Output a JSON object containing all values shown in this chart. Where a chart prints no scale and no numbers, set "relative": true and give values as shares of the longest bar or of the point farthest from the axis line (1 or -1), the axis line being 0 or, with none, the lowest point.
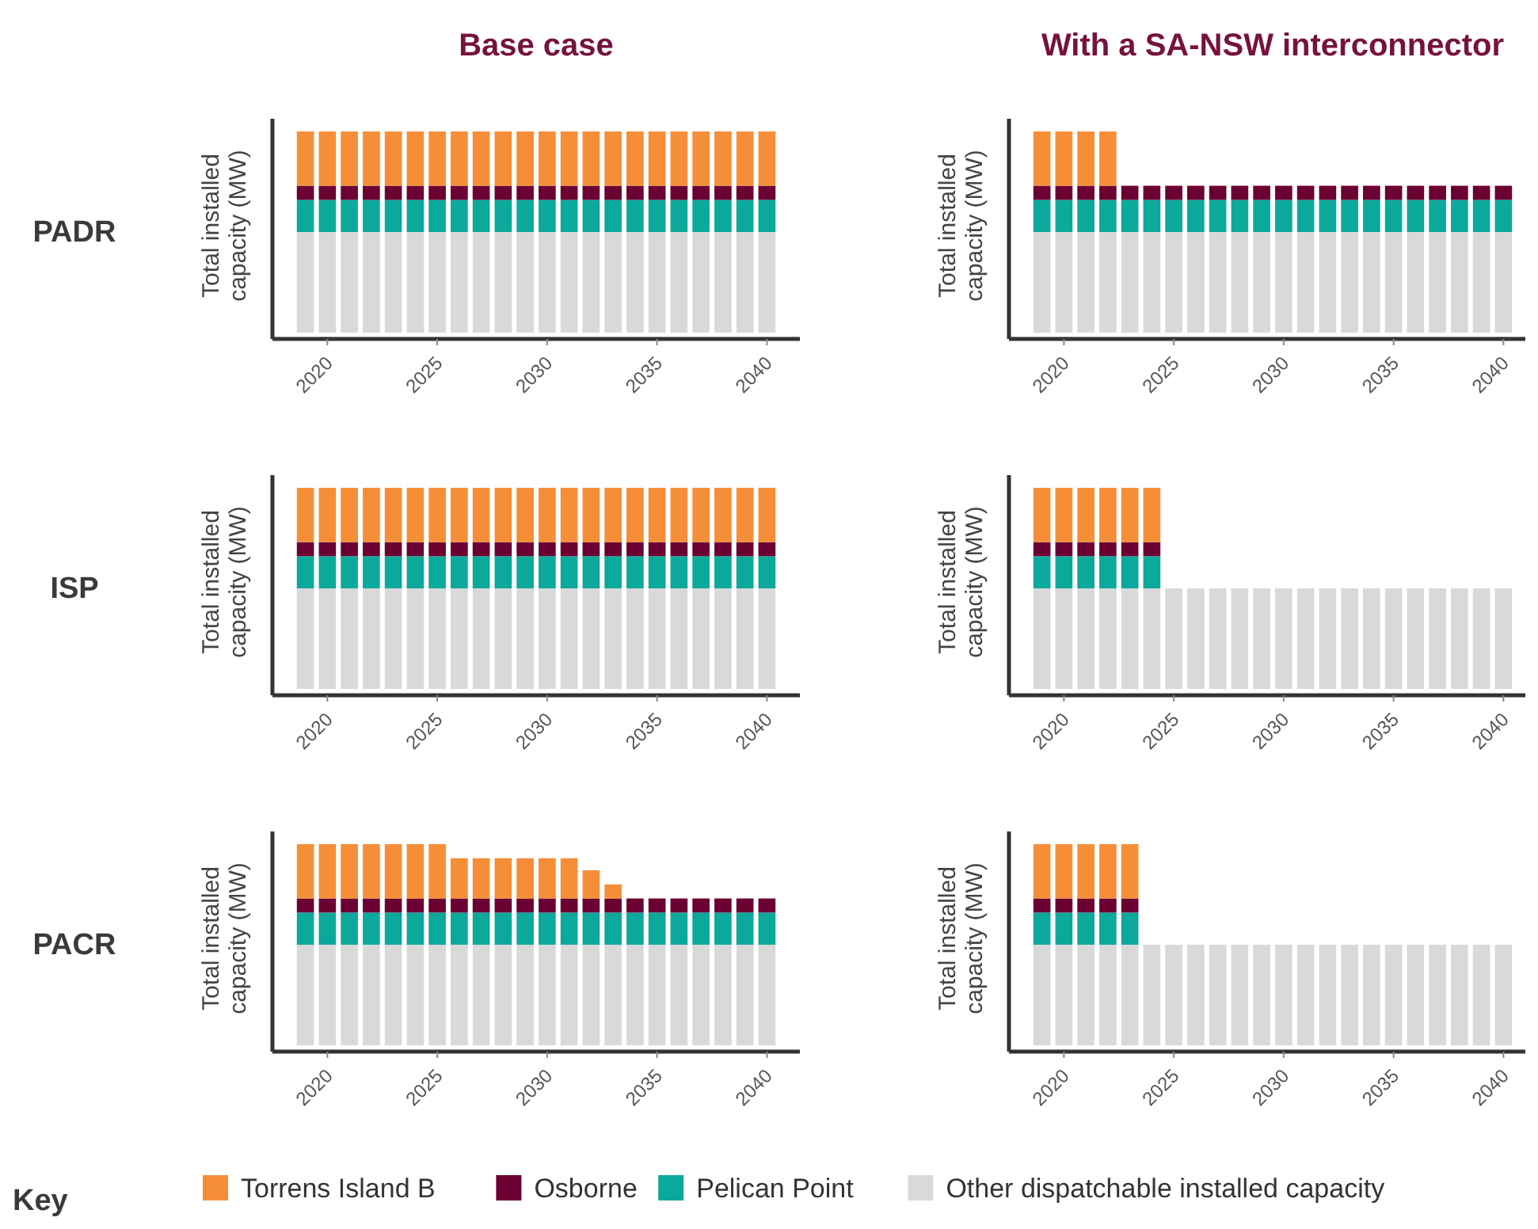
{
  "chart_data": [
    {
      "type": "bar",
      "title": "Base case",
      "annotations": [
        "PADR"
      ],
      "ylabel": "Total installed capacity (MW)",
      "stacked": true,
      "relative": true,
      "x": [
        2019,
        2020,
        2021,
        2022,
        2023,
        2024,
        2025,
        2026,
        2027,
        2028,
        2029,
        2030,
        2031,
        2032,
        2033,
        2034,
        2035,
        2036,
        2037,
        2038,
        2039,
        2040
      ],
      "xlim": [
        2017.5,
        2041.5
      ],
      "xticks": [
        2020,
        2025,
        2030,
        2035,
        2040
      ],
      "series": [
        {
          "color": "#d9d9d9",
          "values": [
            0.5,
            0.5,
            0.5,
            0.5,
            0.5,
            0.5,
            0.5,
            0.5,
            0.5,
            0.5,
            0.5,
            0.5,
            0.5,
            0.5,
            0.5,
            0.5,
            0.5,
            0.5,
            0.5,
            0.5,
            0.5,
            0.5
          ]
        },
        {
          "color": "#0aa99b",
          "values": [
            0.16,
            0.16,
            0.16,
            0.16,
            0.16,
            0.16,
            0.16,
            0.16,
            0.16,
            0.16,
            0.16,
            0.16,
            0.16,
            0.16,
            0.16,
            0.16,
            0.16,
            0.16,
            0.16,
            0.16,
            0.16,
            0.16
          ]
        },
        {
          "color": "#6b0032",
          "values": [
            0.07,
            0.07,
            0.07,
            0.07,
            0.07,
            0.07,
            0.07,
            0.07,
            0.07,
            0.07,
            0.07,
            0.07,
            0.07,
            0.07,
            0.07,
            0.07,
            0.07,
            0.07,
            0.07,
            0.07,
            0.07,
            0.07
          ]
        },
        {
          "color": "#f68e38",
          "values": [
            0.27,
            0.27,
            0.27,
            0.27,
            0.27,
            0.27,
            0.27,
            0.27,
            0.27,
            0.27,
            0.27,
            0.27,
            0.27,
            0.27,
            0.27,
            0.27,
            0.27,
            0.27,
            0.27,
            0.27,
            0.27,
            0.27
          ]
        }
      ]
    },
    {
      "type": "bar",
      "title": "With a SA-NSW interconnector",
      "ylabel": "Total installed capacity (MW)",
      "stacked": true,
      "relative": true,
      "x": [
        2019,
        2020,
        2021,
        2022,
        2023,
        2024,
        2025,
        2026,
        2027,
        2028,
        2029,
        2030,
        2031,
        2032,
        2033,
        2034,
        2035,
        2036,
        2037,
        2038,
        2039,
        2040
      ],
      "xlim": [
        2017.5,
        2041.5
      ],
      "xticks": [
        2020,
        2025,
        2030,
        2035,
        2040
      ],
      "series": [
        {
          "color": "#d9d9d9",
          "values": [
            0.5,
            0.5,
            0.5,
            0.5,
            0.5,
            0.5,
            0.5,
            0.5,
            0.5,
            0.5,
            0.5,
            0.5,
            0.5,
            0.5,
            0.5,
            0.5,
            0.5,
            0.5,
            0.5,
            0.5,
            0.5,
            0.5
          ]
        },
        {
          "color": "#0aa99b",
          "values": [
            0.16,
            0.16,
            0.16,
            0.16,
            0.16,
            0.16,
            0.16,
            0.16,
            0.16,
            0.16,
            0.16,
            0.16,
            0.16,
            0.16,
            0.16,
            0.16,
            0.16,
            0.16,
            0.16,
            0.16,
            0.16,
            0.16
          ]
        },
        {
          "color": "#6b0032",
          "values": [
            0.07,
            0.07,
            0.07,
            0.07,
            0.07,
            0.07,
            0.07,
            0.07,
            0.07,
            0.07,
            0.07,
            0.07,
            0.07,
            0.07,
            0.07,
            0.07,
            0.07,
            0.07,
            0.07,
            0.07,
            0.07,
            0.07
          ]
        },
        {
          "color": "#f68e38",
          "values": [
            0.27,
            0.27,
            0.27,
            0.27,
            0,
            0,
            0,
            0,
            0,
            0,
            0,
            0,
            0,
            0,
            0,
            0,
            0,
            0,
            0,
            0,
            0,
            0
          ]
        }
      ]
    },
    {
      "type": "bar",
      "annotations": [
        "ISP"
      ],
      "ylabel": "Total installed capacity (MW)",
      "stacked": true,
      "relative": true,
      "x": [
        2019,
        2020,
        2021,
        2022,
        2023,
        2024,
        2025,
        2026,
        2027,
        2028,
        2029,
        2030,
        2031,
        2032,
        2033,
        2034,
        2035,
        2036,
        2037,
        2038,
        2039,
        2040
      ],
      "xlim": [
        2017.5,
        2041.5
      ],
      "xticks": [
        2020,
        2025,
        2030,
        2035,
        2040
      ],
      "series": [
        {
          "color": "#d9d9d9",
          "values": [
            0.5,
            0.5,
            0.5,
            0.5,
            0.5,
            0.5,
            0.5,
            0.5,
            0.5,
            0.5,
            0.5,
            0.5,
            0.5,
            0.5,
            0.5,
            0.5,
            0.5,
            0.5,
            0.5,
            0.5,
            0.5,
            0.5
          ]
        },
        {
          "color": "#0aa99b",
          "values": [
            0.16,
            0.16,
            0.16,
            0.16,
            0.16,
            0.16,
            0.16,
            0.16,
            0.16,
            0.16,
            0.16,
            0.16,
            0.16,
            0.16,
            0.16,
            0.16,
            0.16,
            0.16,
            0.16,
            0.16,
            0.16,
            0.16
          ]
        },
        {
          "color": "#6b0032",
          "values": [
            0.07,
            0.07,
            0.07,
            0.07,
            0.07,
            0.07,
            0.07,
            0.07,
            0.07,
            0.07,
            0.07,
            0.07,
            0.07,
            0.07,
            0.07,
            0.07,
            0.07,
            0.07,
            0.07,
            0.07,
            0.07,
            0.07
          ]
        },
        {
          "color": "#f68e38",
          "values": [
            0.27,
            0.27,
            0.27,
            0.27,
            0.27,
            0.27,
            0.27,
            0.27,
            0.27,
            0.27,
            0.27,
            0.27,
            0.27,
            0.27,
            0.27,
            0.27,
            0.27,
            0.27,
            0.27,
            0.27,
            0.27,
            0.27
          ]
        }
      ]
    },
    {
      "type": "bar",
      "ylabel": "Total installed capacity (MW)",
      "stacked": true,
      "relative": true,
      "x": [
        2019,
        2020,
        2021,
        2022,
        2023,
        2024,
        2025,
        2026,
        2027,
        2028,
        2029,
        2030,
        2031,
        2032,
        2033,
        2034,
        2035,
        2036,
        2037,
        2038,
        2039,
        2040
      ],
      "xlim": [
        2017.5,
        2041.5
      ],
      "xticks": [
        2020,
        2025,
        2030,
        2035,
        2040
      ],
      "series": [
        {
          "color": "#d9d9d9",
          "values": [
            0.5,
            0.5,
            0.5,
            0.5,
            0.5,
            0.5,
            0.5,
            0.5,
            0.5,
            0.5,
            0.5,
            0.5,
            0.5,
            0.5,
            0.5,
            0.5,
            0.5,
            0.5,
            0.5,
            0.5,
            0.5,
            0.5
          ]
        },
        {
          "color": "#0aa99b",
          "values": [
            0.16,
            0.16,
            0.16,
            0.16,
            0.16,
            0.16,
            0,
            0,
            0,
            0,
            0,
            0,
            0,
            0,
            0,
            0,
            0,
            0,
            0,
            0,
            0,
            0
          ]
        },
        {
          "color": "#6b0032",
          "values": [
            0.07,
            0.07,
            0.07,
            0.07,
            0.07,
            0.07,
            0,
            0,
            0,
            0,
            0,
            0,
            0,
            0,
            0,
            0,
            0,
            0,
            0,
            0,
            0,
            0
          ]
        },
        {
          "color": "#f68e38",
          "values": [
            0.27,
            0.27,
            0.27,
            0.27,
            0.27,
            0.27,
            0,
            0,
            0,
            0,
            0,
            0,
            0,
            0,
            0,
            0,
            0,
            0,
            0,
            0,
            0,
            0
          ]
        }
      ]
    },
    {
      "type": "bar",
      "annotations": [
        "PACR"
      ],
      "ylabel": "Total installed capacity (MW)",
      "stacked": true,
      "relative": true,
      "x": [
        2019,
        2020,
        2021,
        2022,
        2023,
        2024,
        2025,
        2026,
        2027,
        2028,
        2029,
        2030,
        2031,
        2032,
        2033,
        2034,
        2035,
        2036,
        2037,
        2038,
        2039,
        2040
      ],
      "xlim": [
        2017.5,
        2041.5
      ],
      "xticks": [
        2020,
        2025,
        2030,
        2035,
        2040
      ],
      "series": [
        {
          "color": "#d9d9d9",
          "values": [
            0.5,
            0.5,
            0.5,
            0.5,
            0.5,
            0.5,
            0.5,
            0.5,
            0.5,
            0.5,
            0.5,
            0.5,
            0.5,
            0.5,
            0.5,
            0.5,
            0.5,
            0.5,
            0.5,
            0.5,
            0.5,
            0.5
          ]
        },
        {
          "color": "#0aa99b",
          "values": [
            0.16,
            0.16,
            0.16,
            0.16,
            0.16,
            0.16,
            0.16,
            0.16,
            0.16,
            0.16,
            0.16,
            0.16,
            0.16,
            0.16,
            0.16,
            0.16,
            0.16,
            0.16,
            0.16,
            0.16,
            0.16,
            0.16
          ]
        },
        {
          "color": "#6b0032",
          "values": [
            0.07,
            0.07,
            0.07,
            0.07,
            0.07,
            0.07,
            0.07,
            0.07,
            0.07,
            0.07,
            0.07,
            0.07,
            0.07,
            0.07,
            0.07,
            0.07,
            0.07,
            0.07,
            0.07,
            0.07,
            0.07,
            0.07
          ]
        },
        {
          "color": "#f68e38",
          "values": [
            0.27,
            0.27,
            0.27,
            0.27,
            0.27,
            0.27,
            0.27,
            0.2,
            0.2,
            0.2,
            0.2,
            0.2,
            0.2,
            0.14,
            0.07,
            0,
            0,
            0,
            0,
            0,
            0,
            0
          ]
        }
      ]
    },
    {
      "type": "bar",
      "ylabel": "Total installed capacity (MW)",
      "stacked": true,
      "relative": true,
      "legend": "bottom",
      "legend_title": "Key",
      "x": [
        2019,
        2020,
        2021,
        2022,
        2023,
        2024,
        2025,
        2026,
        2027,
        2028,
        2029,
        2030,
        2031,
        2032,
        2033,
        2034,
        2035,
        2036,
        2037,
        2038,
        2039,
        2040
      ],
      "xlim": [
        2017.5,
        2041.5
      ],
      "xticks": [
        2020,
        2025,
        2030,
        2035,
        2040
      ],
      "series": [
        {
          "name": "Other dispatchable installed capacity",
          "color": "#d9d9d9",
          "values": [
            0.5,
            0.5,
            0.5,
            0.5,
            0.5,
            0.5,
            0.5,
            0.5,
            0.5,
            0.5,
            0.5,
            0.5,
            0.5,
            0.5,
            0.5,
            0.5,
            0.5,
            0.5,
            0.5,
            0.5,
            0.5,
            0.5
          ]
        },
        {
          "name": "Pelican Point",
          "color": "#0aa99b",
          "values": [
            0.16,
            0.16,
            0.16,
            0.16,
            0.16,
            0,
            0,
            0,
            0,
            0,
            0,
            0,
            0,
            0,
            0,
            0,
            0,
            0,
            0,
            0,
            0,
            0
          ]
        },
        {
          "name": "Osborne",
          "color": "#6b0032",
          "values": [
            0.07,
            0.07,
            0.07,
            0.07,
            0.07,
            0,
            0,
            0,
            0,
            0,
            0,
            0,
            0,
            0,
            0,
            0,
            0,
            0,
            0,
            0,
            0,
            0
          ]
        },
        {
          "name": "Torrens Island B",
          "color": "#f68e38",
          "values": [
            0.27,
            0.27,
            0.27,
            0.27,
            0.27,
            0,
            0,
            0,
            0,
            0,
            0,
            0,
            0,
            0,
            0,
            0,
            0,
            0,
            0,
            0,
            0,
            0
          ]
        }
      ]
    }
  ]
}
